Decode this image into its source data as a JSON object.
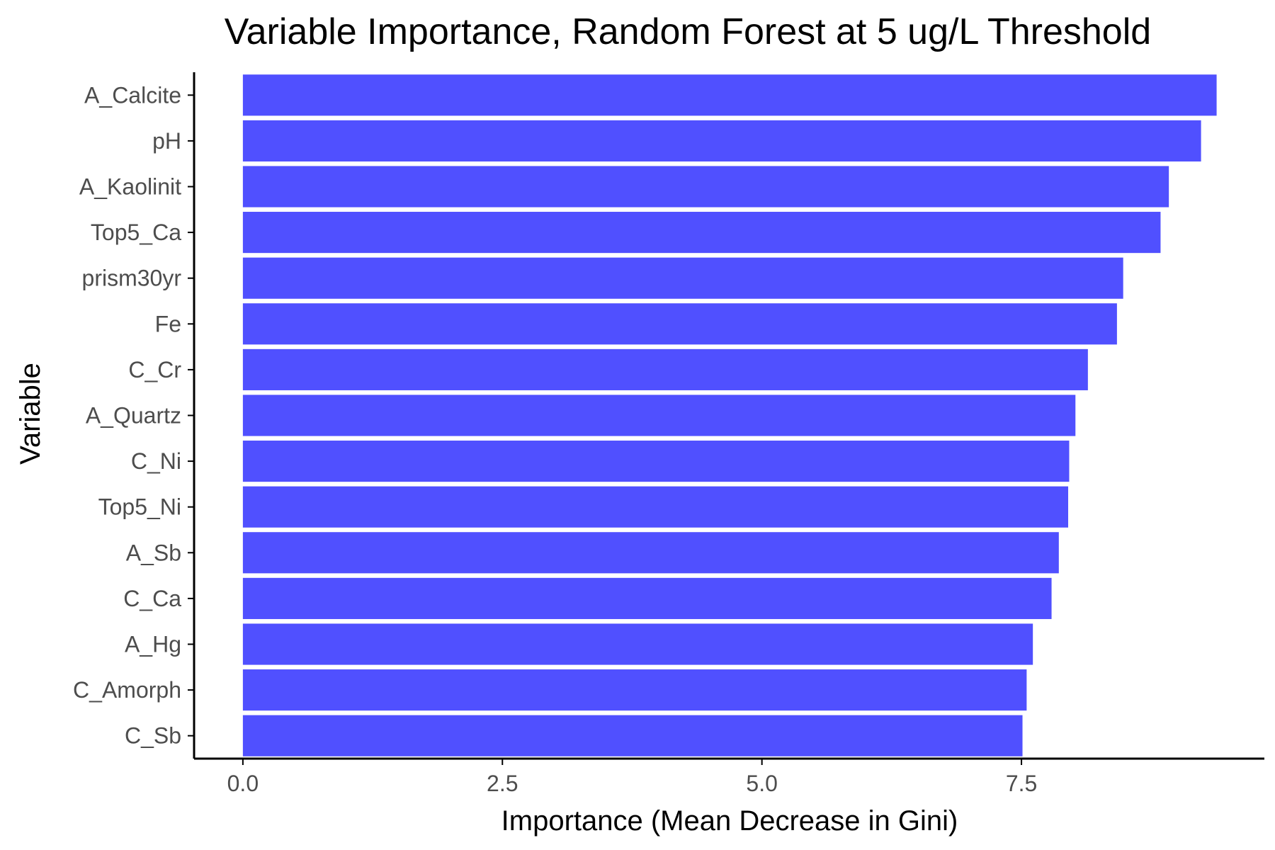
{
  "chart_data": {
    "type": "bar",
    "orientation": "horizontal",
    "title": "Variable Importance, Random Forest at 5 ug/L Threshold",
    "xlabel": "Importance (Mean Decrease in Gini)",
    "ylabel": "Variable",
    "categories": [
      "A_Calcite",
      "pH",
      "A_Kaolinit",
      "Top5_Ca",
      "prism30yr",
      "Fe",
      "C_Cr",
      "A_Quartz",
      "C_Ni",
      "Top5_Ni",
      "A_Sb",
      "C_Ca",
      "A_Hg",
      "C_Amorph",
      "C_Sb"
    ],
    "values": [
      9.38,
      9.23,
      8.92,
      8.84,
      8.48,
      8.42,
      8.14,
      8.02,
      7.96,
      7.95,
      7.86,
      7.79,
      7.61,
      7.55,
      7.51
    ],
    "xlim": [
      -0.47,
      9.84
    ],
    "xticks": [
      0.0,
      2.5,
      5.0,
      7.5
    ],
    "xtick_labels": [
      "0.0",
      "2.5",
      "5.0",
      "7.5"
    ],
    "bar_color": "#5050ff",
    "grid": false,
    "legend": "none"
  }
}
